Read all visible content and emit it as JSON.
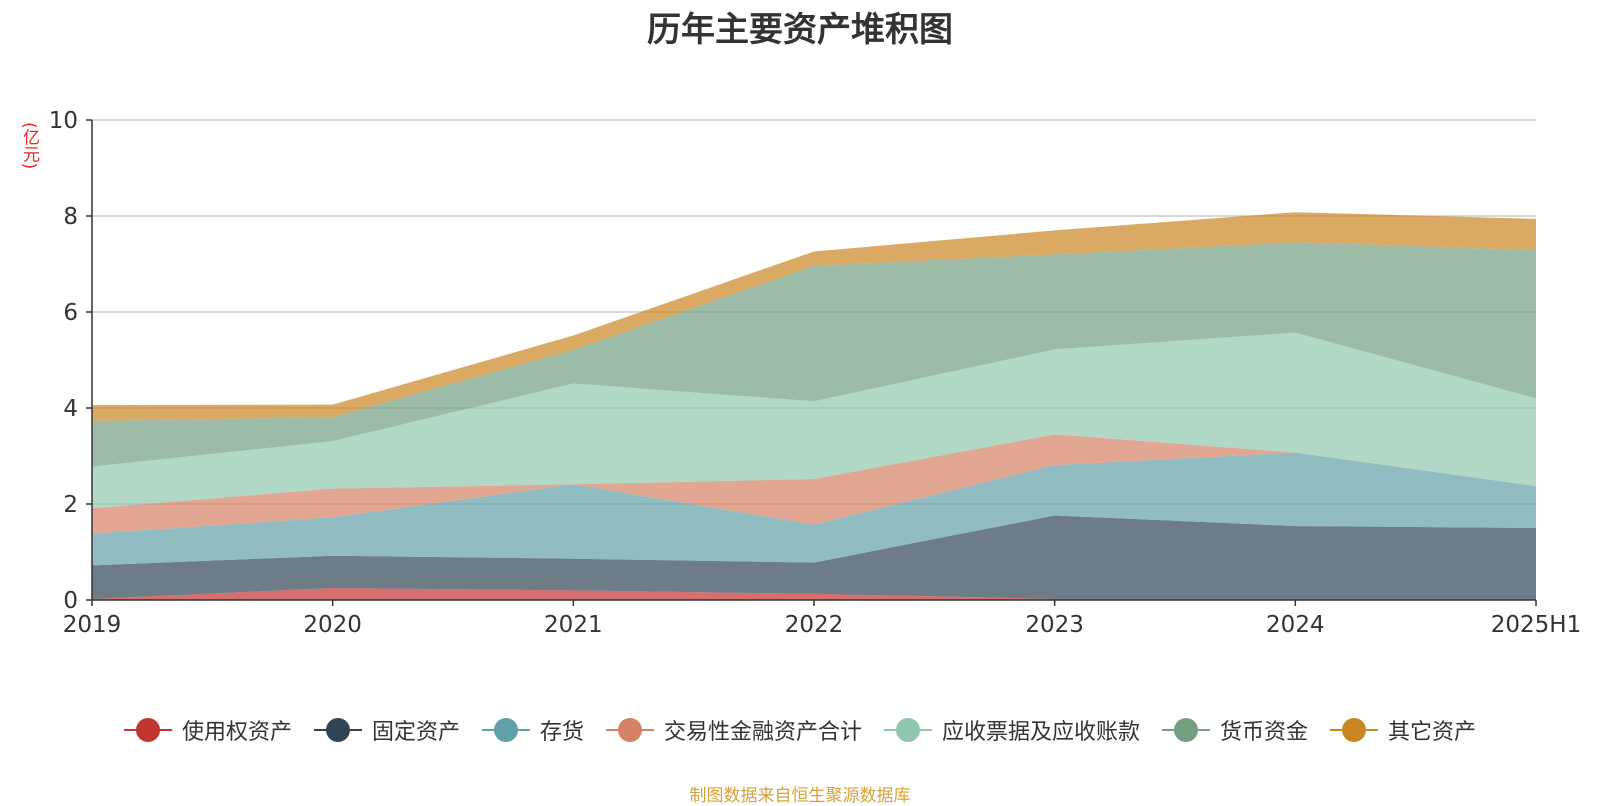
{
  "chart_data": {
    "type": "area",
    "stacked": true,
    "title": "历年主要资产堆积图",
    "unit_label": "(亿元)",
    "categories": [
      "2019",
      "2020",
      "2021",
      "2022",
      "2023",
      "2024",
      "2025H1"
    ],
    "ylim": [
      0,
      10
    ],
    "yticks": [
      0,
      2,
      4,
      6,
      8,
      10
    ],
    "grid": true,
    "legend_position": "bottom",
    "series": [
      {
        "name": "使用权资产",
        "color": "#c23531",
        "values": [
          0.02,
          0.25,
          0.2,
          0.13,
          0.02,
          0.02,
          0.02
        ]
      },
      {
        "name": "固定资产",
        "color": "#2f4554",
        "values": [
          0.7,
          0.67,
          0.66,
          0.65,
          1.74,
          1.52,
          1.48
        ]
      },
      {
        "name": "存货",
        "color": "#61a0a8",
        "values": [
          0.66,
          0.8,
          1.55,
          0.79,
          1.05,
          1.53,
          0.87
        ]
      },
      {
        "name": "交易性金融资产合计",
        "color": "#d48265",
        "values": [
          0.53,
          0.6,
          0.0,
          0.95,
          0.64,
          0.0,
          0.0
        ]
      },
      {
        "name": "应收票据及应收账款",
        "color": "#91c7ae",
        "values": [
          0.87,
          0.99,
          2.1,
          1.62,
          1.77,
          2.5,
          1.83
        ]
      },
      {
        "name": "货币资金",
        "color": "#749f83",
        "values": [
          0.95,
          0.5,
          0.7,
          2.82,
          1.98,
          1.88,
          3.09
        ]
      },
      {
        "name": "其它资产",
        "color": "#ca8622",
        "values": [
          0.33,
          0.26,
          0.3,
          0.3,
          0.5,
          0.63,
          0.65
        ]
      }
    ]
  },
  "source_note": "制图数据来自恒生聚源数据库"
}
